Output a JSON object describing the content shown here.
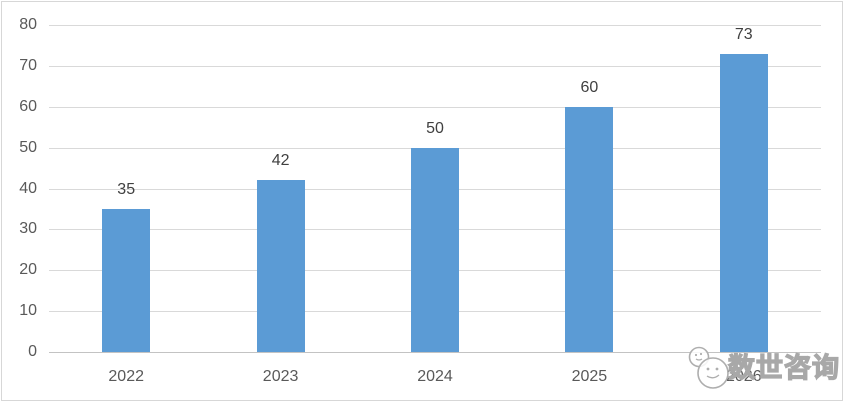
{
  "chart_data": {
    "type": "bar",
    "title": "",
    "xlabel": "",
    "ylabel": "",
    "categories": [
      "2022",
      "2023",
      "2024",
      "2025",
      "2026"
    ],
    "values": [
      35,
      42,
      50,
      60,
      73
    ],
    "data_labels": [
      "35",
      "42",
      "50",
      "60",
      "73"
    ],
    "ylim": [
      0,
      80
    ],
    "yticks": [
      0,
      10,
      20,
      30,
      40,
      50,
      60,
      70,
      80
    ],
    "grid": true,
    "legend": "none",
    "bar_color": "#5B9BD5",
    "gridline_color": "#D9D9D9",
    "axis_line_color": "#C3C3C3",
    "axis_label_color": "#595959",
    "data_label_color": "#404040"
  },
  "watermark": {
    "text": "数世咨询",
    "logo": "cloud-face-logo"
  }
}
